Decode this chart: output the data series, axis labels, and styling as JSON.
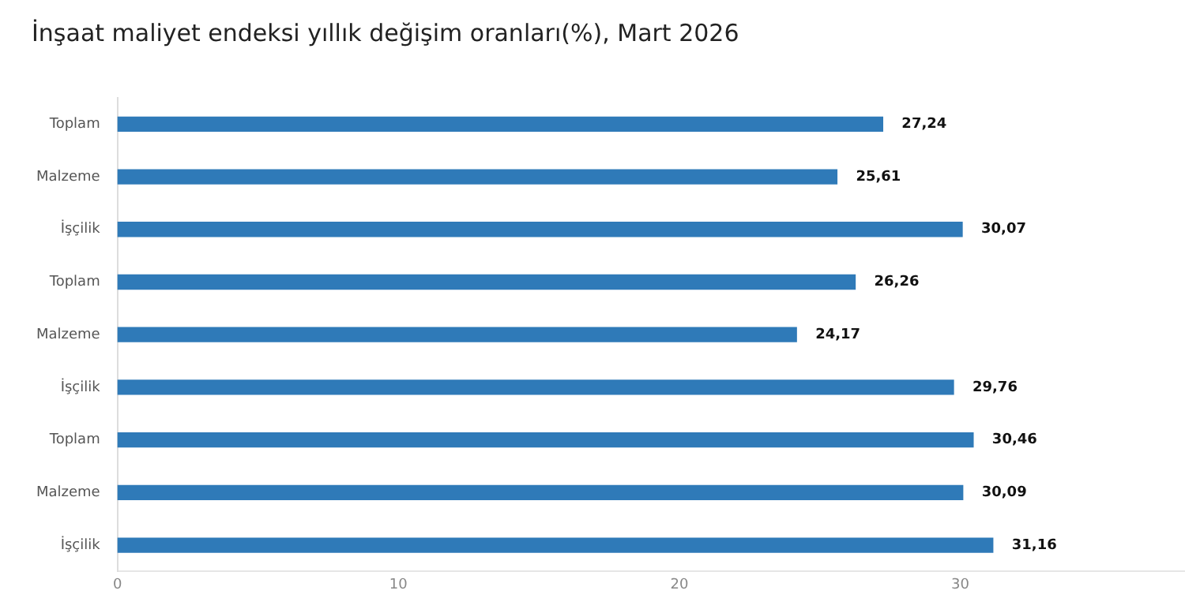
{
  "chart_data": {
    "type": "bar",
    "orientation": "horizontal",
    "title": "İnşaat maliyet endeksi yıllık değişim oranları(%), Mart 2026",
    "categories": [
      "Toplam",
      "Malzeme",
      "İşçilik",
      "Toplam",
      "Malzeme",
      "İşçilik",
      "Toplam",
      "Malzeme",
      "İşçilik"
    ],
    "values": [
      27.24,
      25.61,
      30.07,
      26.26,
      24.17,
      29.76,
      30.46,
      30.09,
      31.16
    ],
    "value_labels": [
      "27,24",
      "25,61",
      "30,07",
      "26,26",
      "24,17",
      "29,76",
      "30,46",
      "30,09",
      "31,16"
    ],
    "color": "#2f7ab8",
    "xlim": [
      0,
      38
    ],
    "xticks": [
      0,
      10,
      20,
      30
    ],
    "grid": false,
    "legend": false
  }
}
